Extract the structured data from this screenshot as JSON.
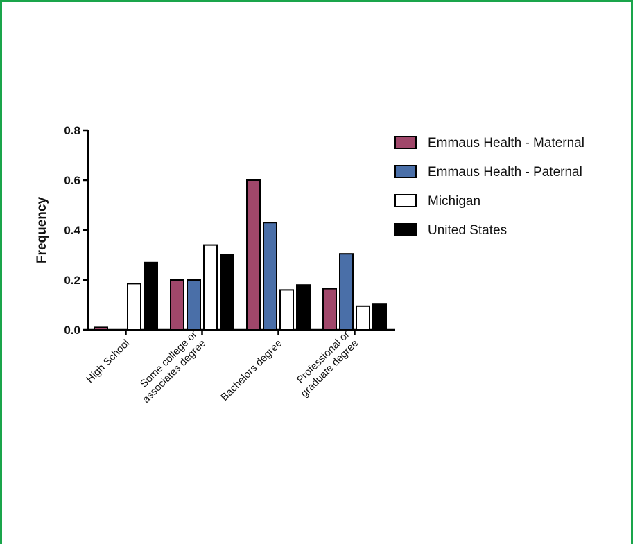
{
  "chart_data": {
    "type": "bar",
    "title": "",
    "xlabel": "",
    "ylabel": "Frequency",
    "ylim": [
      0,
      0.8
    ],
    "yticks": [
      "0.0",
      "0.2",
      "0.4",
      "0.6",
      "0.8"
    ],
    "yticks_values": [
      0,
      0.2,
      0.4,
      0.6,
      0.8
    ],
    "categories": [
      [
        "High School"
      ],
      [
        "Some college or",
        "associates degree"
      ],
      [
        "Bachelors degree"
      ],
      [
        "Professional or",
        "graduate degree"
      ]
    ],
    "legend_position": "right",
    "grid": false,
    "series": [
      {
        "name": "Emmaus Health - Maternal",
        "color": "#a0476a",
        "values": [
          0.01,
          0.2,
          0.6,
          0.165
        ]
      },
      {
        "name": "Emmaus Health - Paternal",
        "color": "#4a6fa8",
        "values": [
          0.0,
          0.2,
          0.43,
          0.305
        ]
      },
      {
        "name": "Michigan",
        "color": "#ffffff",
        "values": [
          0.185,
          0.34,
          0.16,
          0.095
        ]
      },
      {
        "name": "United States",
        "color": "#000000",
        "values": [
          0.27,
          0.3,
          0.18,
          0.105
        ]
      }
    ]
  }
}
